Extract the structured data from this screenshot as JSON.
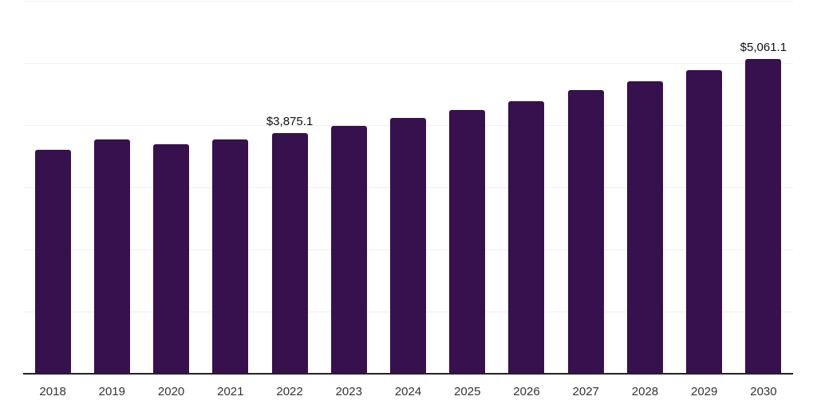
{
  "chart_style": {
    "background": "#ffffff",
    "bar_color": "#36114D",
    "grid_color": "#f1f1f1",
    "axis_color": "#222222",
    "tick_label_color": "#333333",
    "value_label_color": "#111111"
  },
  "chart_data": {
    "type": "bar",
    "title": "",
    "xlabel": "",
    "ylabel": "",
    "categories": [
      "2018",
      "2019",
      "2020",
      "2021",
      "2022",
      "2023",
      "2024",
      "2025",
      "2026",
      "2027",
      "2028",
      "2029",
      "2030"
    ],
    "values": [
      3600,
      3770,
      3690,
      3770,
      3875.1,
      3990,
      4110,
      4245,
      4385,
      4560,
      4710,
      4885,
      5061.1
    ],
    "data_labels": [
      {
        "category": "2022",
        "text": "$3,875.1"
      },
      {
        "category": "2030",
        "text": "$5,061.1"
      }
    ],
    "ylim": [
      0,
      6000
    ],
    "gridline_step": 1000,
    "grid": true,
    "legend_position": "none",
    "y_axis_labels_shown": false
  }
}
